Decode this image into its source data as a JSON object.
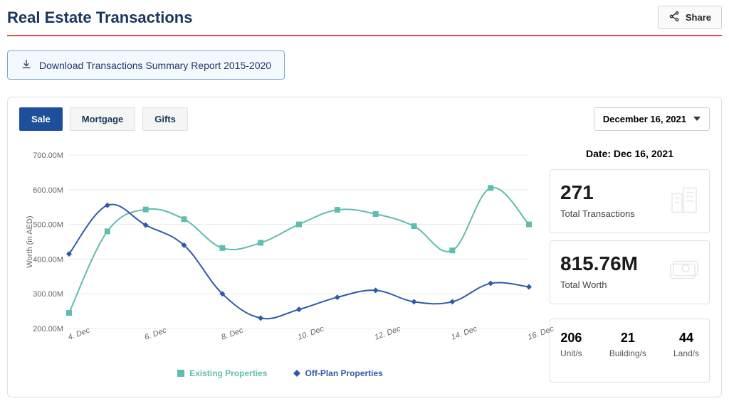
{
  "header": {
    "title": "Real Estate Transactions",
    "title_color": "#17365d",
    "underline_color": "#d9534f",
    "share_label": "Share"
  },
  "download": {
    "label": "Download Transactions Summary Report 2015-2020",
    "text_color": "#1f3864",
    "border_color": "#6fa8dc",
    "bg_color": "#f4f9ff"
  },
  "tabs": {
    "items": [
      {
        "label": "Sale",
        "active": true
      },
      {
        "label": "Mortgage",
        "active": false
      },
      {
        "label": "Gifts",
        "active": false
      }
    ],
    "active_bg": "#1f4e9b",
    "inactive_text": "#17365d"
  },
  "date_picker": {
    "label": "December 16, 2021"
  },
  "chart": {
    "type": "line",
    "y_axis_title": "Worth (in AED)",
    "x_labels": [
      "4. Dec",
      "",
      "6. Dec",
      "",
      "8. Dec",
      "",
      "10. Dec",
      "",
      "12. Dec",
      "",
      "14. Dec",
      "",
      "16. Dec"
    ],
    "y_ticks": [
      "200.00M",
      "300.00M",
      "400.00M",
      "500.00M",
      "600.00M",
      "700.00M"
    ],
    "ylim": [
      200,
      700
    ],
    "grid_color": "#ececec",
    "axis_label_color": "#666666",
    "axis_fontsize": 11,
    "background": "#ffffff",
    "marker_size": 4,
    "line_width": 2,
    "smooth": true,
    "series": [
      {
        "name": "Existing Properties",
        "color": "#5fbdb0",
        "marker": "square",
        "values": [
          245,
          480,
          543,
          515,
          432,
          447,
          500,
          542,
          530,
          495,
          425,
          605,
          500
        ]
      },
      {
        "name": "Off-Plan Properties",
        "color": "#2e5aac",
        "marker": "diamond",
        "values": [
          415,
          555,
          498,
          440,
          300,
          230,
          255,
          290,
          310,
          277,
          277,
          330,
          320
        ]
      }
    ],
    "legend": {
      "items": [
        {
          "label": "Existing Properties",
          "color": "#5fbdb0",
          "marker": "square"
        },
        {
          "label": "Off-Plan Properties",
          "color": "#2e5aac",
          "marker": "diamond"
        }
      ]
    }
  },
  "stats": {
    "date_label": "Date: Dec 16, 2021",
    "value_color": "#1c1c1c",
    "cards": [
      {
        "value": "271",
        "label": "Total Transactions",
        "icon": "buildings"
      },
      {
        "value": "815.76M",
        "label": "Total Worth",
        "icon": "cash"
      }
    ],
    "breakdown": [
      {
        "value": "206",
        "label": "Unit/s"
      },
      {
        "value": "21",
        "label": "Building/s"
      },
      {
        "value": "44",
        "label": "Land/s"
      }
    ]
  }
}
